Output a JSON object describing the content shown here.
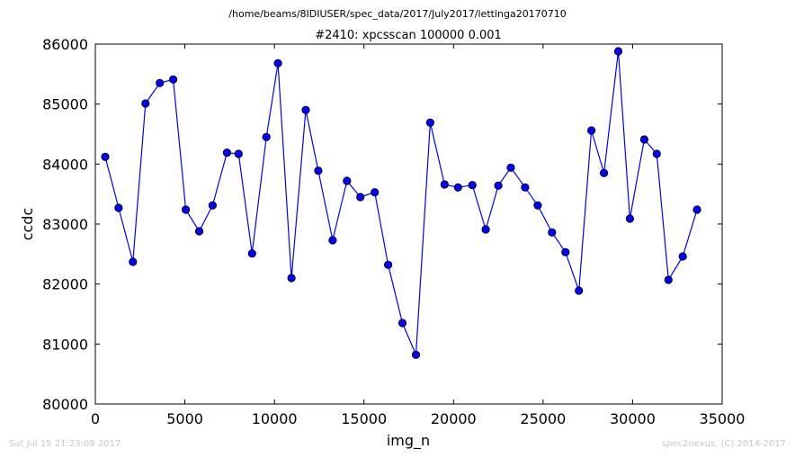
{
  "chart_data": {
    "type": "line",
    "suptitle": "/home/beams/8IDIUSER/spec_data/2017/July2017/lettinga20170710",
    "title": "#2410: xpcsscan 100000 0.001",
    "xlabel": "img_n",
    "ylabel": "ccdc",
    "xlim": [
      0,
      35000
    ],
    "ylim": [
      80000,
      86000
    ],
    "xticks": [
      "0",
      "5000",
      "10000",
      "15000",
      "20000",
      "25000",
      "30000",
      "35000"
    ],
    "yticks": [
      "80000",
      "81000",
      "82000",
      "83000",
      "84000",
      "85000",
      "86000"
    ],
    "grid": false,
    "color": "#0000ff",
    "marker": "circle",
    "series": [
      {
        "x": [
          550,
          1300,
          2100,
          2800,
          3600,
          4350,
          5050,
          5800,
          6550,
          7350,
          8000,
          8750,
          9550,
          10200,
          10950,
          11750,
          12450,
          13250,
          14050,
          14800,
          15600,
          16350,
          17150,
          17900,
          18700,
          19500,
          20250,
          21050,
          21800,
          22500,
          23200,
          24000,
          24700,
          25500,
          26250,
          27000,
          27700,
          28400,
          29200,
          29850,
          30650,
          31350,
          32000,
          32800,
          33600
        ],
        "y": [
          84120,
          83270,
          82370,
          85010,
          85350,
          85410,
          83240,
          82880,
          83310,
          84190,
          84170,
          82510,
          84450,
          85680,
          82100,
          84900,
          83890,
          82730,
          83720,
          83450,
          83530,
          82320,
          81350,
          80820,
          84690,
          83660,
          83610,
          83650,
          82910,
          83640,
          83940,
          83610,
          83310,
          82860,
          82530,
          81890,
          84560,
          83850,
          85880,
          83090,
          84410,
          84170,
          82070,
          82460,
          83240
        ]
      }
    ]
  },
  "footer": {
    "left": "Sat Jul 15 21:23:09 2017",
    "right": "spec2nexus, (C) 2014-2017"
  }
}
